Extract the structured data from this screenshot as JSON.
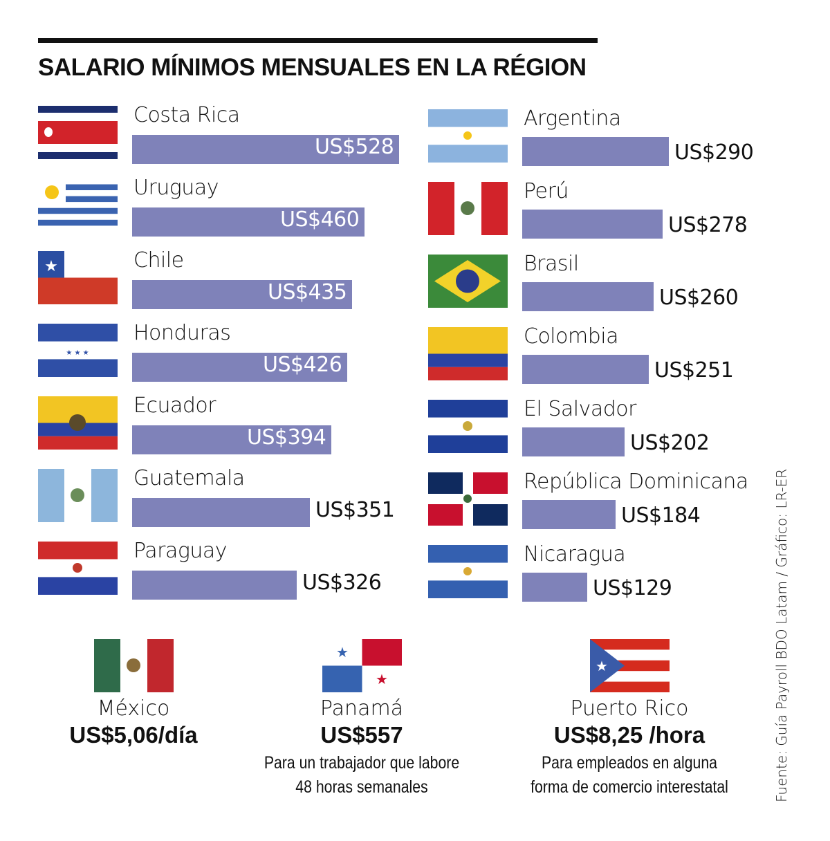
{
  "chart_data": {
    "type": "bar",
    "orientation": "horizontal",
    "title": "SALARIO MÍNIMOS MENSUALES EN LA RÉGION",
    "bar_color": "#7f82b9",
    "columns": [
      {
        "categories": [
          "Costa Rica",
          "Uruguay",
          "Chile",
          "Honduras",
          "Ecuador",
          "Guatemala",
          "Paraguay"
        ],
        "values": [
          528,
          460,
          435,
          426,
          394,
          351,
          326
        ],
        "labels": [
          "US$528",
          "US$460",
          "US$435",
          "US$426",
          "US$394",
          "US$351",
          "US$326"
        ]
      },
      {
        "categories": [
          "Argentina",
          "Perú",
          "Brasil",
          "Colombia",
          "El Salvador",
          "República Dominicana",
          "Nicaragua"
        ],
        "values": [
          290,
          278,
          260,
          251,
          202,
          184,
          129
        ],
        "labels": [
          "US$290",
          "US$278",
          "US$260",
          "US$251",
          "US$202",
          "US$184",
          "US$129"
        ]
      }
    ]
  },
  "extras": [
    {
      "country": "México",
      "value": "US$5,06/día",
      "note": []
    },
    {
      "country": "Panamá",
      "value": "US$557",
      "note": [
        "Para un trabajador que labore",
        "48 horas semanales"
      ]
    },
    {
      "country": "Puerto Rico",
      "value": "US$8,25 /hora",
      "note": [
        "Para empleados en alguna",
        "forma de comercio interestatal"
      ]
    }
  ],
  "source": "Fuente: Guía Payroll BDO Latam /  Gráfico: LR-ER"
}
